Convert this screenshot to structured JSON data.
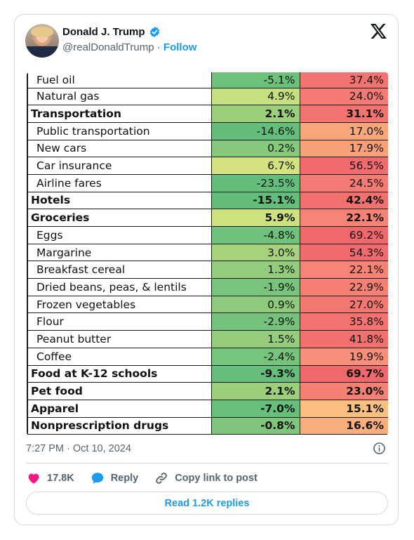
{
  "author": {
    "name": "Donald J. Trump",
    "handle": "@realDonaldTrump",
    "separator": "·",
    "follow_label": "Follow"
  },
  "table_rows": [
    {
      "label": "Fuel oil",
      "v1": "-5.1%",
      "v2": "37.4%",
      "bold": false,
      "c1": "#6cc07b",
      "c2": "#f2736f"
    },
    {
      "label": "Natural gas",
      "v1": "4.9%",
      "v2": "24.0%",
      "bold": false,
      "c1": "#c6e07f",
      "c2": "#f47b73"
    },
    {
      "label": "Transportation",
      "v1": "2.1%",
      "v2": "31.1%",
      "bold": true,
      "c1": "#9ccf7a",
      "c2": "#f2736f"
    },
    {
      "label": "Public transportation",
      "v1": "-14.6%",
      "v2": "17.0%",
      "bold": false,
      "c1": "#63bd7b",
      "c2": "#f9a77a"
    },
    {
      "label": "New cars",
      "v1": "0.2%",
      "v2": "17.9%",
      "bold": false,
      "c1": "#86c87c",
      "c2": "#f8a077"
    },
    {
      "label": "Car insurance",
      "v1": "6.7%",
      "v2": "56.5%",
      "bold": false,
      "c1": "#d4e37f",
      "c2": "#f16a6e"
    },
    {
      "label": "Airline fares",
      "v1": "-23.5%",
      "v2": "24.5%",
      "bold": false,
      "c1": "#63be7b",
      "c2": "#f47b73"
    },
    {
      "label": "Hotels",
      "v1": "-15.1%",
      "v2": "42.4%",
      "bold": true,
      "c1": "#63be7b",
      "c2": "#f2716f"
    },
    {
      "label": "Groceries",
      "v1": "5.9%",
      "v2": "22.1%",
      "bold": true,
      "c1": "#cde27e",
      "c2": "#f58474"
    },
    {
      "label": "Eggs",
      "v1": "-4.8%",
      "v2": "69.2%",
      "bold": false,
      "c1": "#6fc17c",
      "c2": "#f0676c"
    },
    {
      "label": "Margarine",
      "v1": "3.0%",
      "v2": "54.3%",
      "bold": false,
      "c1": "#a7d27d",
      "c2": "#f16b6e"
    },
    {
      "label": "Breakfast cereal",
      "v1": "1.3%",
      "v2": "22.1%",
      "bold": false,
      "c1": "#93cc7c",
      "c2": "#f58474"
    },
    {
      "label": "Dried beans, peas, & lentils",
      "v1": "-1.9%",
      "v2": "22.9%",
      "bold": false,
      "c1": "#78c47c",
      "c2": "#f58073"
    },
    {
      "label": "Frozen vegetables",
      "v1": "0.9%",
      "v2": "27.0%",
      "bold": false,
      "c1": "#8dca7c",
      "c2": "#f37872"
    },
    {
      "label": "Flour",
      "v1": "-2.9%",
      "v2": "35.8%",
      "bold": false,
      "c1": "#74c27c",
      "c2": "#f2736f"
    },
    {
      "label": "Peanut butter",
      "v1": "1.5%",
      "v2": "41.8%",
      "bold": false,
      "c1": "#95cd7c",
      "c2": "#f2716f"
    },
    {
      "label": "Coffee",
      "v1": "-2.4%",
      "v2": "19.9%",
      "bold": false,
      "c1": "#76c37c",
      "c2": "#f7907a"
    },
    {
      "label": "Food at K-12 schools",
      "v1": "-9.3%",
      "v2": "69.7%",
      "bold": true,
      "c1": "#65be7b",
      "c2": "#f0676c"
    },
    {
      "label": "Pet food",
      "v1": "2.1%",
      "v2": "23.0%",
      "bold": true,
      "c1": "#9ccf7c",
      "c2": "#f58073"
    },
    {
      "label": "Apparel",
      "v1": "-7.0%",
      "v2": "15.1%",
      "bold": true,
      "c1": "#66bf7b",
      "c2": "#fbc07f"
    },
    {
      "label": "Nonprescription drugs",
      "v1": "-0.8%",
      "v2": "16.6%",
      "bold": true,
      "c1": "#7fc67c",
      "c2": "#faae7b"
    }
  ],
  "meta": {
    "time": "7:27 PM · Oct 10, 2024"
  },
  "actions": {
    "likes": "17.8K",
    "reply": "Reply",
    "copy_link": "Copy link to post"
  },
  "read_replies": "Read 1.2K replies",
  "colors": {
    "accent": "#1d9bf0",
    "like_heart": "#f91880",
    "muted": "#536471"
  },
  "icons": {
    "verified": "verified-badge-icon",
    "logo": "x-logo-icon",
    "info": "info-icon",
    "like": "heart-icon",
    "reply": "reply-bubble-icon",
    "copy": "link-icon"
  }
}
